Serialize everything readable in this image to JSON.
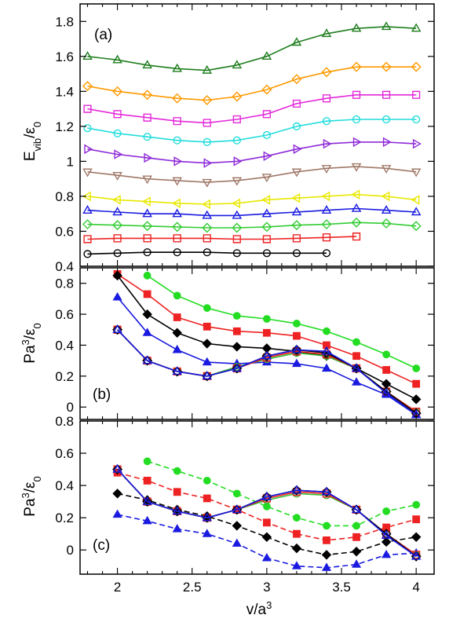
{
  "chart_data": [
    {
      "type": "line",
      "panel_tag": "(a)",
      "ylabel_main": "E",
      "ylabel_sub": "vib",
      "ylabel_rest": "/ε",
      "ylabel_rest_sub": "0",
      "xlim": [
        1.75,
        4.12
      ],
      "ylim": [
        0.4,
        1.9
      ],
      "yticks": [
        "0.4",
        "0.6",
        "0.8",
        "1",
        "1.2",
        "1.4",
        "1.6",
        "1.8"
      ],
      "show_x_tick_labels": false,
      "series": [
        {
          "color": "#1e7d1e",
          "marker": "triangle-up",
          "filled": false,
          "dash": "",
          "x": [
            1.8,
            2.0,
            2.2,
            2.4,
            2.6,
            2.8,
            3.0,
            3.2,
            3.4,
            3.6,
            3.8,
            4.0
          ],
          "y": [
            1.6,
            1.58,
            1.55,
            1.53,
            1.52,
            1.55,
            1.6,
            1.68,
            1.73,
            1.76,
            1.77,
            1.76
          ]
        },
        {
          "color": "#ff9900",
          "marker": "diamond",
          "filled": false,
          "dash": "",
          "x": [
            1.8,
            2.0,
            2.2,
            2.4,
            2.6,
            2.8,
            3.0,
            3.2,
            3.4,
            3.6,
            3.8,
            4.0
          ],
          "y": [
            1.43,
            1.4,
            1.38,
            1.36,
            1.35,
            1.37,
            1.41,
            1.47,
            1.51,
            1.54,
            1.54,
            1.54
          ]
        },
        {
          "color": "#e32ad9",
          "marker": "square",
          "filled": false,
          "dash": "",
          "x": [
            1.8,
            2.0,
            2.2,
            2.4,
            2.6,
            2.8,
            3.0,
            3.2,
            3.4,
            3.6,
            3.8,
            4.0
          ],
          "y": [
            1.3,
            1.27,
            1.25,
            1.23,
            1.22,
            1.24,
            1.27,
            1.33,
            1.36,
            1.38,
            1.38,
            1.38
          ]
        },
        {
          "color": "#22dcdc",
          "marker": "circle",
          "filled": false,
          "dash": "",
          "x": [
            1.8,
            2.0,
            2.2,
            2.4,
            2.6,
            2.8,
            3.0,
            3.2,
            3.4,
            3.6,
            3.8,
            4.0
          ],
          "y": [
            1.19,
            1.16,
            1.14,
            1.12,
            1.11,
            1.12,
            1.15,
            1.2,
            1.23,
            1.24,
            1.24,
            1.24
          ]
        },
        {
          "color": "#8e2bd8",
          "marker": "triangle-right",
          "filled": false,
          "dash": "",
          "x": [
            1.8,
            2.0,
            2.2,
            2.4,
            2.6,
            2.8,
            3.0,
            3.2,
            3.4,
            3.6,
            3.8,
            4.0
          ],
          "y": [
            1.07,
            1.04,
            1.02,
            1.0,
            0.99,
            1.0,
            1.03,
            1.07,
            1.1,
            1.11,
            1.11,
            1.1
          ]
        },
        {
          "color": "#a07868",
          "marker": "triangle-down",
          "filled": false,
          "dash": "",
          "x": [
            1.8,
            2.0,
            2.2,
            2.4,
            2.6,
            2.8,
            3.0,
            3.2,
            3.4,
            3.6,
            3.8,
            4.0
          ],
          "y": [
            0.94,
            0.92,
            0.9,
            0.89,
            0.88,
            0.89,
            0.91,
            0.94,
            0.96,
            0.97,
            0.96,
            0.94
          ]
        },
        {
          "color": "#e8e800",
          "marker": "triangle-left",
          "filled": false,
          "dash": "",
          "x": [
            1.8,
            2.0,
            2.2,
            2.4,
            2.6,
            2.8,
            3.0,
            3.2,
            3.4,
            3.6,
            3.8,
            4.0
          ],
          "y": [
            0.8,
            0.78,
            0.77,
            0.76,
            0.755,
            0.76,
            0.78,
            0.79,
            0.8,
            0.81,
            0.8,
            0.78
          ]
        },
        {
          "color": "#1a1ae0",
          "marker": "triangle-up",
          "filled": false,
          "dash": "",
          "x": [
            1.8,
            2.0,
            2.2,
            2.4,
            2.6,
            2.8,
            3.0,
            3.2,
            3.4,
            3.6,
            3.8,
            4.0
          ],
          "y": [
            0.72,
            0.71,
            0.7,
            0.7,
            0.69,
            0.69,
            0.7,
            0.71,
            0.72,
            0.73,
            0.72,
            0.71
          ]
        },
        {
          "color": "#33cc33",
          "marker": "diamond",
          "filled": false,
          "dash": "",
          "x": [
            1.8,
            2.0,
            2.2,
            2.4,
            2.6,
            2.8,
            3.0,
            3.2,
            3.4,
            3.6,
            3.8,
            4.0
          ],
          "y": [
            0.64,
            0.635,
            0.63,
            0.625,
            0.62,
            0.62,
            0.625,
            0.635,
            0.64,
            0.65,
            0.645,
            0.63
          ]
        },
        {
          "color": "#ee2222",
          "marker": "square",
          "filled": false,
          "dash": "",
          "x": [
            1.8,
            2.0,
            2.2,
            2.4,
            2.6,
            2.8,
            3.0,
            3.2,
            3.4,
            3.6
          ],
          "y": [
            0.555,
            0.56,
            0.56,
            0.56,
            0.56,
            0.555,
            0.555,
            0.56,
            0.565,
            0.57
          ]
        },
        {
          "color": "#000000",
          "marker": "circle",
          "filled": false,
          "dash": "",
          "x": [
            1.8,
            2.0,
            2.2,
            2.4,
            2.6,
            2.8,
            3.0,
            3.2,
            3.4
          ],
          "y": [
            0.47,
            0.475,
            0.48,
            0.48,
            0.48,
            0.475,
            0.475,
            0.475,
            0.475
          ]
        }
      ]
    },
    {
      "type": "line",
      "panel_tag": "(b)",
      "ylabel_main": "Pa",
      "ylabel_sup": "3",
      "ylabel_rest": "/ε",
      "ylabel_rest_sub": "0",
      "xlim": [
        1.75,
        4.12
      ],
      "ylim": [
        -0.08,
        0.9
      ],
      "yticks": [
        "0",
        "0.2",
        "0.4",
        "0.6",
        "0.8"
      ],
      "show_x_tick_labels": false,
      "series": [
        {
          "color": "#22dd22",
          "marker": "circle",
          "filled": true,
          "dash": "",
          "x": [
            2.2,
            2.4,
            2.6,
            2.8,
            3.0,
            3.2,
            3.4,
            3.6,
            3.8,
            4.0
          ],
          "y": [
            0.85,
            0.72,
            0.64,
            0.59,
            0.57,
            0.54,
            0.49,
            0.42,
            0.34,
            0.25
          ]
        },
        {
          "color": "#ee2222",
          "marker": "square",
          "filled": true,
          "dash": "",
          "x": [
            2.0,
            2.2,
            2.4,
            2.6,
            2.8,
            3.0,
            3.2,
            3.4,
            3.6,
            3.8,
            4.0
          ],
          "y": [
            0.86,
            0.73,
            0.58,
            0.52,
            0.49,
            0.48,
            0.46,
            0.4,
            0.33,
            0.24,
            0.15
          ]
        },
        {
          "color": "#000000",
          "marker": "diamond",
          "filled": true,
          "dash": "",
          "x": [
            2.0,
            2.2,
            2.4,
            2.6,
            2.8,
            3.0,
            3.2,
            3.4,
            3.6,
            3.8,
            4.0
          ],
          "y": [
            0.85,
            0.6,
            0.48,
            0.41,
            0.39,
            0.38,
            0.36,
            0.33,
            0.25,
            0.15,
            0.05
          ]
        },
        {
          "color": "#1a1ae0",
          "marker": "triangle-up",
          "filled": true,
          "dash": "",
          "x": [
            2.0,
            2.2,
            2.4,
            2.6,
            2.8,
            3.0,
            3.2,
            3.4,
            3.6,
            3.8,
            4.0
          ],
          "y": [
            0.71,
            0.48,
            0.37,
            0.29,
            0.28,
            0.29,
            0.28,
            0.25,
            0.16,
            0.08,
            -0.05
          ]
        },
        {
          "color": "#33bb33",
          "marker": "circle",
          "filled": false,
          "dash": "",
          "x": [
            2.0,
            2.2,
            2.4,
            2.6,
            2.8,
            3.0,
            3.2,
            3.4,
            3.6,
            3.8,
            4.0
          ],
          "y": [
            0.5,
            0.3,
            0.23,
            0.2,
            0.26,
            0.31,
            0.35,
            0.33,
            0.25,
            0.1,
            -0.03
          ]
        },
        {
          "color": "#ee2222",
          "marker": "square",
          "filled": false,
          "dash": "",
          "x": [
            2.0,
            2.2,
            2.4,
            2.6,
            2.8,
            3.0,
            3.2,
            3.4,
            3.6,
            3.8,
            4.0
          ],
          "y": [
            0.5,
            0.3,
            0.23,
            0.2,
            0.25,
            0.32,
            0.36,
            0.34,
            0.25,
            0.1,
            -0.03
          ]
        },
        {
          "color": "#000000",
          "marker": "diamond",
          "filled": false,
          "dash": "",
          "x": [
            2.0,
            2.2,
            2.4,
            2.6,
            2.8,
            3.0,
            3.2,
            3.4,
            3.6,
            3.8,
            4.0
          ],
          "y": [
            0.5,
            0.3,
            0.23,
            0.2,
            0.25,
            0.33,
            0.37,
            0.35,
            0.25,
            0.1,
            -0.04
          ]
        },
        {
          "color": "#1a1ae0",
          "marker": "triangle-up",
          "filled": false,
          "dash": "",
          "x": [
            2.0,
            2.2,
            2.4,
            2.6,
            2.8,
            3.0,
            3.2,
            3.4,
            3.6,
            3.8,
            4.0
          ],
          "y": [
            0.5,
            0.3,
            0.23,
            0.2,
            0.25,
            0.33,
            0.37,
            0.36,
            0.25,
            0.09,
            -0.05
          ]
        }
      ]
    },
    {
      "type": "line",
      "panel_tag": "(c)",
      "ylabel_main": "Pa",
      "ylabel_sup": "3",
      "ylabel_rest": "/ε",
      "ylabel_rest_sub": "0",
      "xlabel_main": "v/a",
      "xlabel_sup": "3",
      "xlim": [
        1.75,
        4.12
      ],
      "ylim": [
        -0.15,
        0.8
      ],
      "yticks": [
        "0",
        "0.2",
        "0.4",
        "0.6",
        "0.8"
      ],
      "xticks": [
        "2",
        "2.5",
        "3",
        "3.5",
        "4"
      ],
      "show_x_tick_labels": true,
      "series": [
        {
          "color": "#22dd22",
          "marker": "circle",
          "filled": true,
          "dash": "7,4",
          "x": [
            2.2,
            2.4,
            2.6,
            2.8,
            3.0,
            3.2,
            3.4,
            3.6,
            3.8,
            4.0
          ],
          "y": [
            0.55,
            0.49,
            0.43,
            0.35,
            0.27,
            0.2,
            0.15,
            0.15,
            0.24,
            0.28
          ]
        },
        {
          "color": "#ee2222",
          "marker": "square",
          "filled": true,
          "dash": "7,4",
          "x": [
            2.0,
            2.2,
            2.4,
            2.6,
            2.8,
            3.0,
            3.2,
            3.4,
            3.6,
            3.8,
            4.0
          ],
          "y": [
            0.48,
            0.43,
            0.36,
            0.32,
            0.25,
            0.17,
            0.1,
            0.06,
            0.08,
            0.14,
            0.19
          ]
        },
        {
          "color": "#000000",
          "marker": "diamond",
          "filled": true,
          "dash": "7,4",
          "x": [
            2.0,
            2.2,
            2.4,
            2.6,
            2.8,
            3.0,
            3.2,
            3.4,
            3.6,
            3.8,
            4.0
          ],
          "y": [
            0.35,
            0.31,
            0.25,
            0.21,
            0.15,
            0.08,
            0.01,
            -0.03,
            -0.01,
            0.05,
            0.08
          ]
        },
        {
          "color": "#1a1ae0",
          "marker": "triangle-up",
          "filled": true,
          "dash": "7,4",
          "x": [
            2.0,
            2.2,
            2.4,
            2.6,
            2.8,
            3.0,
            3.2,
            3.4,
            3.6,
            3.8,
            4.0
          ],
          "y": [
            0.22,
            0.18,
            0.13,
            0.1,
            0.04,
            -0.05,
            -0.1,
            -0.11,
            -0.09,
            -0.03,
            -0.02
          ]
        },
        {
          "color": "#33bb33",
          "marker": "circle",
          "filled": false,
          "dash": "",
          "x": [
            2.0,
            2.2,
            2.4,
            2.6,
            2.8,
            3.0,
            3.2,
            3.4,
            3.6,
            3.8,
            4.0
          ],
          "y": [
            0.5,
            0.3,
            0.24,
            0.2,
            0.25,
            0.31,
            0.35,
            0.34,
            0.25,
            0.1,
            -0.03
          ]
        },
        {
          "color": "#ee2222",
          "marker": "square",
          "filled": false,
          "dash": "",
          "x": [
            2.0,
            2.2,
            2.4,
            2.6,
            2.8,
            3.0,
            3.2,
            3.4,
            3.6,
            3.8,
            4.0
          ],
          "y": [
            0.5,
            0.3,
            0.24,
            0.2,
            0.25,
            0.32,
            0.36,
            0.35,
            0.25,
            0.1,
            -0.03
          ]
        },
        {
          "color": "#000000",
          "marker": "diamond",
          "filled": false,
          "dash": "",
          "x": [
            2.0,
            2.2,
            2.4,
            2.6,
            2.8,
            3.0,
            3.2,
            3.4,
            3.6,
            3.8,
            4.0
          ],
          "y": [
            0.5,
            0.3,
            0.24,
            0.2,
            0.25,
            0.33,
            0.37,
            0.36,
            0.25,
            0.1,
            -0.04
          ]
        },
        {
          "color": "#1a1ae0",
          "marker": "triangle-up",
          "filled": false,
          "dash": "",
          "x": [
            2.0,
            2.2,
            2.4,
            2.6,
            2.8,
            3.0,
            3.2,
            3.4,
            3.6,
            3.8,
            4.0
          ],
          "y": [
            0.5,
            0.3,
            0.24,
            0.2,
            0.25,
            0.33,
            0.37,
            0.36,
            0.25,
            0.09,
            -0.04
          ]
        }
      ]
    }
  ]
}
